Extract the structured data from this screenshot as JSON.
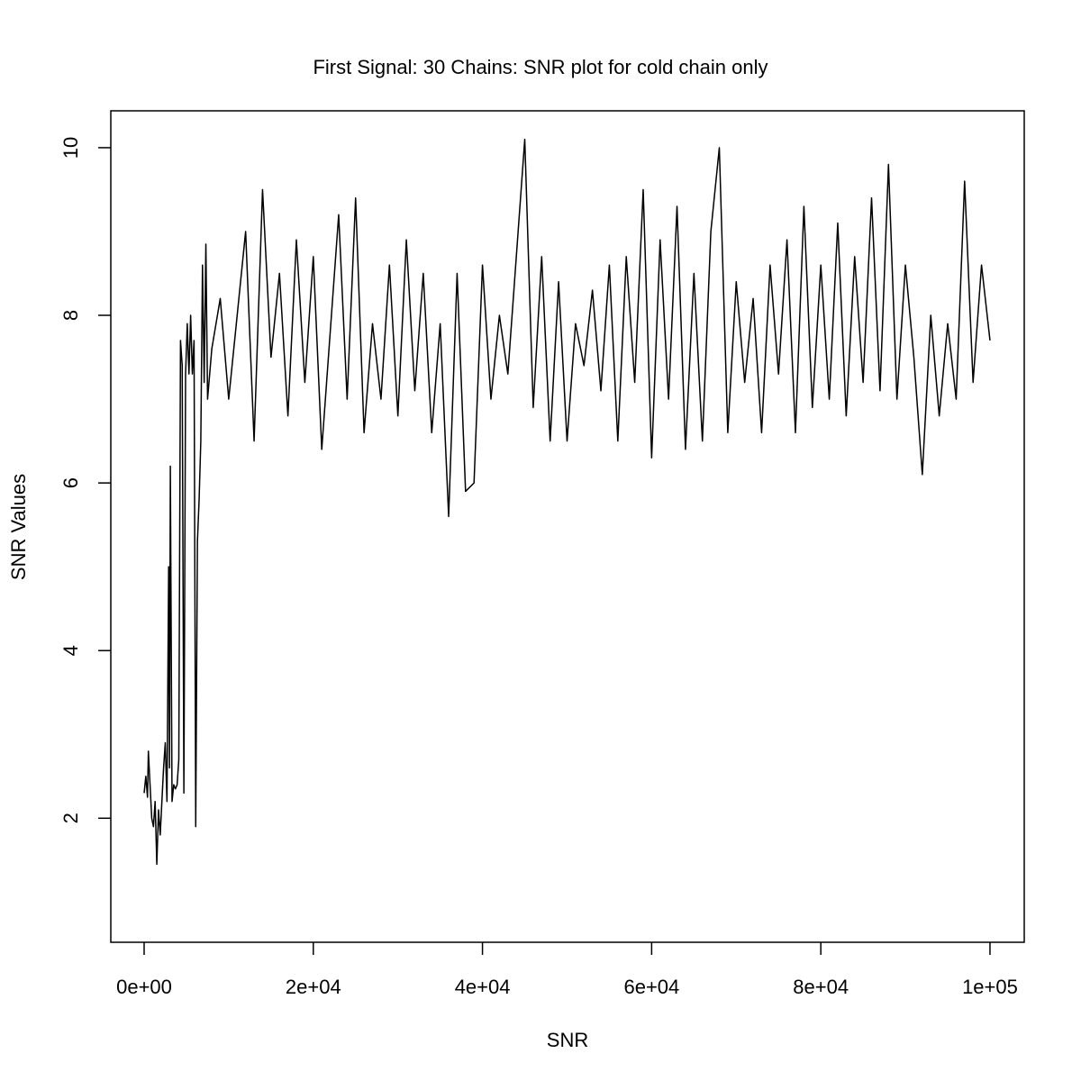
{
  "chart_data": {
    "type": "line",
    "title": "First Signal: 30 Chains: SNR plot for cold chain only",
    "xlabel": "SNR",
    "ylabel": "SNR Values",
    "color": "#000000",
    "x": [
      0,
      200,
      400,
      500,
      700,
      900,
      1100,
      1300,
      1500,
      1700,
      1900,
      2100,
      2300,
      2500,
      2700,
      2900,
      3000,
      3100,
      3300,
      3500,
      3700,
      3900,
      4100,
      4300,
      4500,
      4700,
      4900,
      5100,
      5300,
      5500,
      5700,
      5900,
      6100,
      6300,
      6500,
      6700,
      6900,
      7100,
      7300,
      7500,
      8000,
      9000,
      10000,
      11000,
      12000,
      13000,
      14000,
      15000,
      16000,
      17000,
      18000,
      19000,
      20000,
      21000,
      22000,
      23000,
      24000,
      25000,
      26000,
      27000,
      28000,
      29000,
      30000,
      31000,
      32000,
      33000,
      34000,
      35000,
      36000,
      37000,
      38000,
      39000,
      40000,
      41000,
      42000,
      43000,
      44000,
      45000,
      46000,
      47000,
      48000,
      49000,
      50000,
      51000,
      52000,
      53000,
      54000,
      55000,
      56000,
      57000,
      58000,
      59000,
      60000,
      61000,
      62000,
      63000,
      64000,
      65000,
      66000,
      67000,
      68000,
      69000,
      70000,
      71000,
      72000,
      73000,
      74000,
      75000,
      76000,
      77000,
      78000,
      79000,
      80000,
      81000,
      82000,
      83000,
      84000,
      85000,
      86000,
      87000,
      88000,
      89000,
      90000,
      91000,
      92000,
      93000,
      94000,
      95000,
      96000,
      97000,
      98000,
      99000,
      100000
    ],
    "values": [
      2.3,
      2.5,
      2.25,
      2.8,
      2.4,
      2.0,
      1.9,
      2.2,
      1.45,
      2.1,
      1.8,
      2.2,
      2.6,
      2.9,
      2.2,
      5.0,
      2.6,
      6.2,
      2.2,
      2.4,
      2.35,
      2.4,
      2.7,
      7.7,
      7.4,
      2.3,
      7.3,
      7.9,
      7.3,
      8.0,
      7.3,
      7.7,
      1.9,
      5.3,
      5.8,
      6.5,
      8.6,
      7.2,
      8.85,
      7.0,
      7.6,
      8.2,
      7.0,
      8.0,
      9.0,
      6.5,
      9.5,
      7.5,
      8.5,
      6.8,
      8.9,
      7.2,
      8.7,
      6.4,
      7.8,
      9.2,
      7.0,
      9.4,
      6.6,
      7.9,
      7.0,
      8.6,
      6.8,
      8.9,
      7.1,
      8.5,
      6.6,
      7.9,
      5.6,
      8.5,
      5.9,
      6.0,
      8.6,
      7.0,
      8.0,
      7.3,
      8.7,
      10.1,
      6.9,
      8.7,
      6.5,
      8.4,
      6.5,
      7.9,
      7.4,
      8.3,
      7.1,
      8.6,
      6.5,
      8.7,
      7.2,
      9.5,
      6.3,
      8.9,
      7.0,
      9.3,
      6.4,
      8.5,
      6.5,
      9.0,
      10.0,
      6.6,
      8.4,
      7.2,
      8.2,
      6.6,
      8.6,
      7.3,
      8.9,
      6.6,
      9.3,
      6.9,
      8.6,
      7.0,
      9.1,
      6.8,
      8.7,
      7.2,
      9.4,
      7.1,
      9.8,
      7.0,
      8.6,
      7.5,
      6.1,
      8.0,
      6.8,
      7.9,
      7.0,
      9.6,
      7.2,
      8.6,
      7.7
    ],
    "xlim": [
      -3940,
      104050
    ],
    "ylim": [
      0.52,
      10.44
    ],
    "xticks": [
      {
        "value": 0,
        "label": "0e+00"
      },
      {
        "value": 20000,
        "label": "2e+04"
      },
      {
        "value": 40000,
        "label": "4e+04"
      },
      {
        "value": 60000,
        "label": "6e+04"
      },
      {
        "value": 80000,
        "label": "8e+04"
      },
      {
        "value": 100000,
        "label": "1e+05"
      }
    ],
    "yticks": [
      2,
      4,
      6,
      8,
      10
    ]
  }
}
